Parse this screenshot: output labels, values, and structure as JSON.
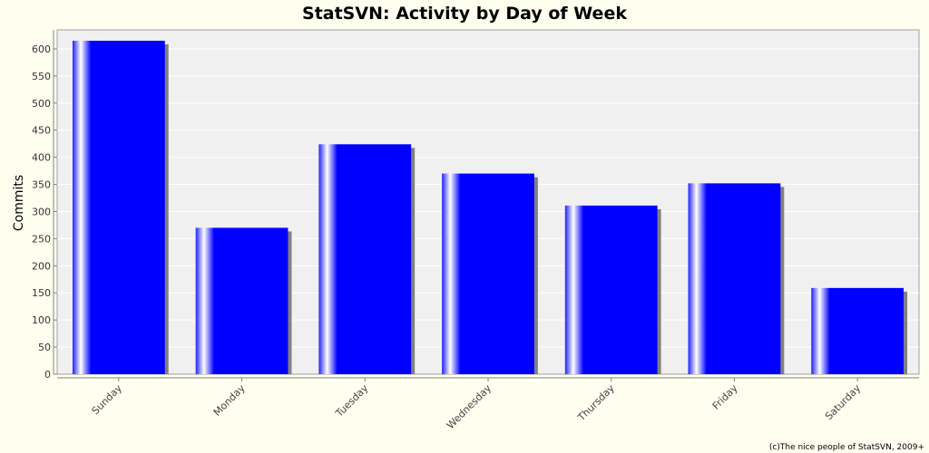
{
  "credit": "(c)The nice people of StatSVN, 2009+",
  "colors": {
    "bar": "#0000ff",
    "plot_bg": "#f0f0f0",
    "page_bg": "#fffff0",
    "shadow": "#808080"
  },
  "chart_data": {
    "type": "bar",
    "title": "StatSVN: Activity by Day of Week",
    "xlabel": "",
    "ylabel": "Commits",
    "categories": [
      "Sunday",
      "Monday",
      "Tuesday",
      "Wednesday",
      "Thursday",
      "Friday",
      "Saturday"
    ],
    "values": [
      615,
      270,
      424,
      370,
      311,
      352,
      159
    ],
    "ylim": [
      0,
      635
    ],
    "yticks": [
      0,
      50,
      100,
      150,
      200,
      250,
      300,
      350,
      400,
      450,
      500,
      550,
      600
    ],
    "grid": true,
    "legend": "none"
  }
}
